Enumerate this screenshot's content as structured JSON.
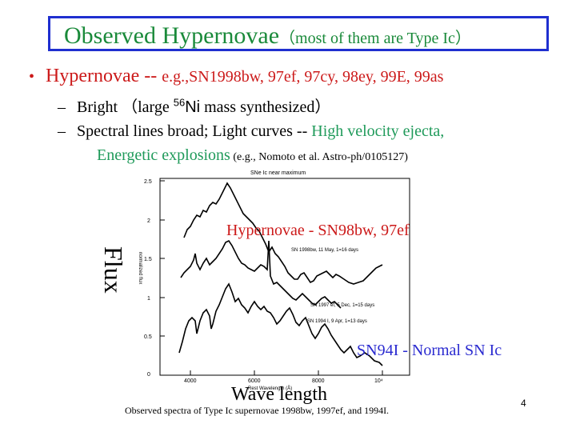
{
  "slide": {
    "title": "Observed Hypernovae",
    "title_sub": "（most of them are Type Ic）",
    "bullet_main": "Hypernovae -- ",
    "bullet_examples": "e.g.,SN1998bw, 97ef, 97cy, 98ey, 99E, 99as",
    "sub1_a": "Bright （large ",
    "sub1_sup": "56",
    "sub1_ni": "Ni",
    "sub1_b": " mass synthesized）",
    "sub2_black": "Spectral lines broad; Light curves -- ",
    "sub2_green1": "High velocity ejecta,",
    "sub2_green2": "Energetic explosions",
    "sub2_ref": " (e.g., Nomoto et al. Astro-ph/0105127)",
    "figure_top_title": "SNe Ic near maximum",
    "figure_ylabel_small": "normalized flux",
    "figure_xlabel_small": "Rest Wavelength (Å)",
    "figure_x10": "10⁴",
    "y_ticks": [
      "2.5",
      "2",
      "1.5",
      "1",
      "0.5",
      "0"
    ],
    "x_ticks": [
      "4000",
      "6000",
      "8000"
    ],
    "label_98bw": "SN 1998bw, 11 May, 1=16 days",
    "label_97ef": "SN 1997 ef, 5 Dec, 1=15 days",
    "label_94I": "SN 1994 I, 9 Apr, 1=13 days",
    "overlay_hypernovae": "Hypernovae - SN98bw, 97ef",
    "overlay_normal": "SN94I - Normal SN Ic",
    "axis_flux": "Flux",
    "axis_wave": "Wave  length",
    "caption": "Observed spectra of Type Ic supernovae 1998bw, 1997ef, and 1994I.",
    "page_number": "4"
  },
  "colors": {
    "title_border": "#1f2fd0",
    "title_text": "#1a8a3a",
    "red": "#cc1a1a",
    "green": "#1f9a5a",
    "blue": "#2a2ad0"
  }
}
